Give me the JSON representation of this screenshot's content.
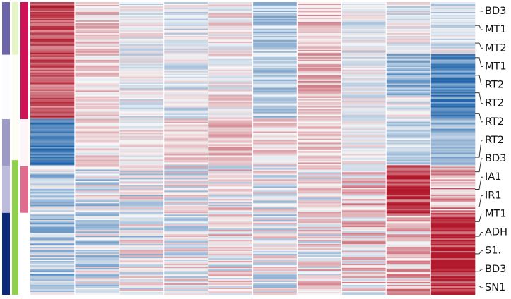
{
  "chart_data": {
    "type": "heatmap",
    "title": "",
    "xlabel": "",
    "ylabel": "",
    "n_columns": 10,
    "colormap": {
      "name": "RdBu_r",
      "low": "#2166ac",
      "mid": "#f7f7f7",
      "high": "#b2182b"
    },
    "row_annotation_tracks": [
      {
        "name": "",
        "segments": [
          {
            "from": 0.0,
            "to": 0.18,
            "color": "#6b64a8"
          },
          {
            "from": 0.18,
            "to": 0.4,
            "color": "#fcfbfd"
          },
          {
            "from": 0.4,
            "to": 0.56,
            "color": "#9e9ac8"
          },
          {
            "from": 0.56,
            "to": 0.72,
            "color": "#bcbddc"
          },
          {
            "from": 0.72,
            "to": 1.0,
            "color": "#0b2a7a"
          }
        ]
      },
      {
        "name": "",
        "segments": [
          {
            "from": 0.0,
            "to": 0.18,
            "color": "#e5f5c8"
          },
          {
            "from": 0.18,
            "to": 0.54,
            "color": "#fdfdf5"
          },
          {
            "from": 0.54,
            "to": 1.0,
            "color": "#8fd14f"
          }
        ]
      },
      {
        "name": "",
        "segments": [
          {
            "from": 0.0,
            "to": 0.4,
            "color": "#ce1256"
          },
          {
            "from": 0.4,
            "to": 0.56,
            "color": "#fdf5f8"
          },
          {
            "from": 0.56,
            "to": 0.72,
            "color": "#df6c8e"
          },
          {
            "from": 0.72,
            "to": 1.0,
            "color": "#ffffff"
          }
        ]
      }
    ],
    "column_clusters": [
      {
        "from": 0.0,
        "to": 0.4,
        "value": 0.7,
        "spread": 0.3
      },
      {
        "from": 0.4,
        "to": 0.56,
        "value": -0.8,
        "spread": 0.25
      },
      {
        "from": 0.56,
        "to": 1.0,
        "value": -0.3,
        "spread": 0.45
      }
    ],
    "column_profiles": [
      [
        0.7,
        -0.8,
        -0.3
      ],
      [
        0.15,
        0.1,
        -0.15
      ],
      [
        -0.05,
        0.05,
        -0.1
      ],
      [
        -0.1,
        0.2,
        0.0
      ],
      [
        0.05,
        0.25,
        0.05
      ],
      [
        -0.3,
        0.15,
        -0.05
      ],
      [
        0.25,
        0.2,
        0.05
      ],
      [
        -0.05,
        0.0,
        0.15
      ],
      [
        -0.05,
        -0.2,
        0.25
      ],
      [
        -0.1,
        -0.45,
        0.4
      ]
    ],
    "hot_blocks": [
      {
        "column": 8,
        "from": 0.56,
        "to": 0.72,
        "value": 0.85
      },
      {
        "column": 9,
        "from": 0.72,
        "to": 1.0,
        "value": 0.95
      },
      {
        "column": 9,
        "from": 0.18,
        "to": 0.4,
        "value": -0.75
      },
      {
        "column": 8,
        "from": 0.18,
        "to": 0.32,
        "value": -0.45
      }
    ],
    "row_labels": [
      {
        "label": "BD3",
        "row_fraction": 0.03
      },
      {
        "label": "MT1",
        "row_fraction": 0.08
      },
      {
        "label": "MT2",
        "row_fraction": 0.14
      },
      {
        "label": "MT1",
        "row_fraction": 0.19
      },
      {
        "label": "RT2",
        "row_fraction": 0.25
      },
      {
        "label": "RT2",
        "row_fraction": 0.31
      },
      {
        "label": "RT2",
        "row_fraction": 0.38
      },
      {
        "label": "RT2",
        "row_fraction": 0.53
      },
      {
        "label": "BD3",
        "row_fraction": 0.58
      },
      {
        "label": "IA1",
        "row_fraction": 0.64
      },
      {
        "label": "IR1",
        "row_fraction": 0.7
      },
      {
        "label": "MT1",
        "row_fraction": 0.75
      },
      {
        "label": "ADH",
        "row_fraction": 0.8
      },
      {
        "label": "S1.",
        "row_fraction": 0.86
      },
      {
        "label": "BD3",
        "row_fraction": 0.92
      },
      {
        "label": "SN1",
        "row_fraction": 0.97
      }
    ]
  }
}
